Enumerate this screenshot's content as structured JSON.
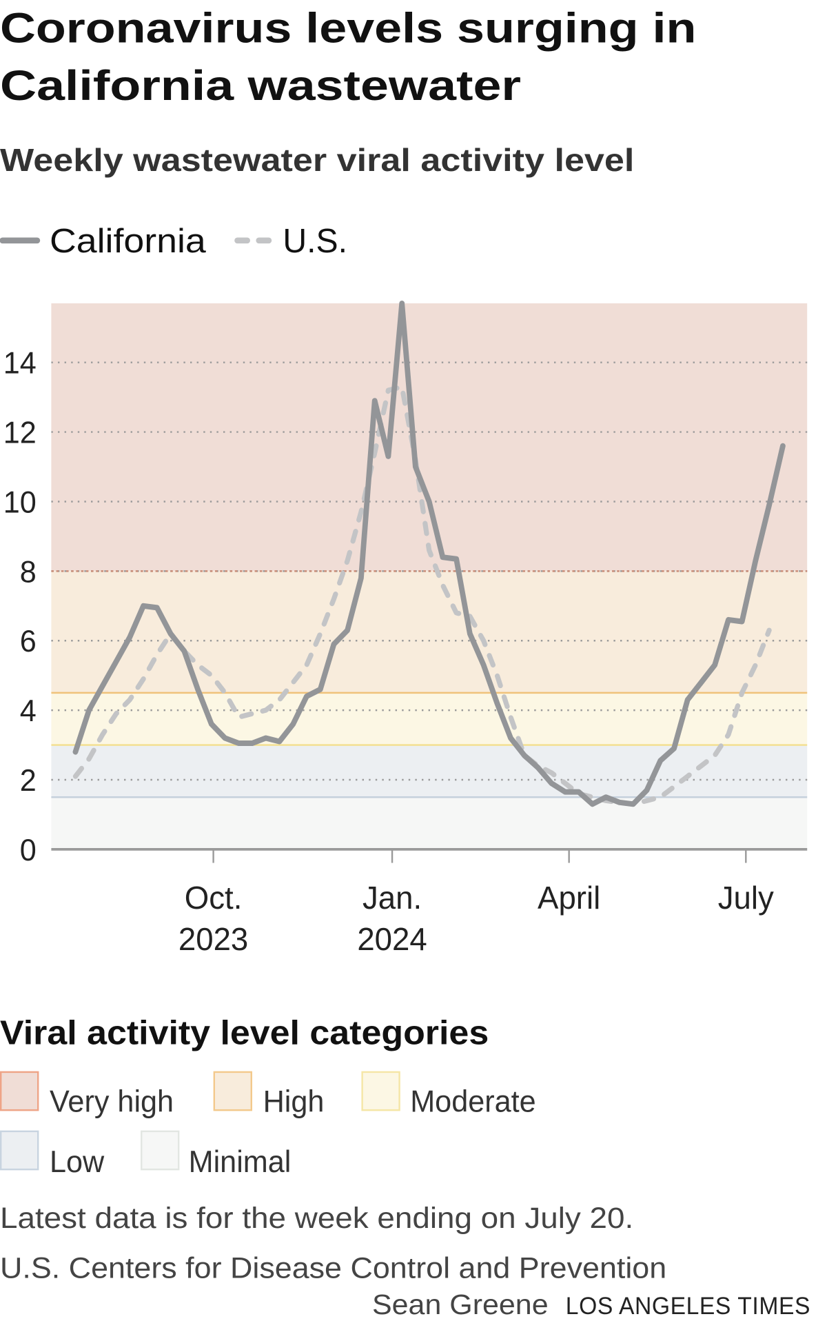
{
  "header": {
    "title_line1": "Coronavirus levels surging in",
    "title_line2": "California wastewater",
    "subtitle": "Weekly wastewater viral activity level"
  },
  "legend": {
    "california": "California",
    "us": "U.S."
  },
  "categories": {
    "heading": "Viral activity level categories",
    "items": [
      {
        "label": "Very high",
        "min": 8,
        "max": null,
        "fill": "#f0ddd6",
        "border": "#eea487",
        "line": "#c98d78"
      },
      {
        "label": "High",
        "min": 4.5,
        "max": 8,
        "fill": "#f8ecdc",
        "border": "#f3c98c",
        "line": "#f0c27a"
      },
      {
        "label": "Moderate",
        "min": 3,
        "max": 4.5,
        "fill": "#fcf7e4",
        "border": "#f5e6a6",
        "line": "#f3df8d"
      },
      {
        "label": "Low",
        "min": 1.5,
        "max": 3,
        "fill": "#eceff2",
        "border": "#c8d4e0",
        "line": "#c5d0dc"
      },
      {
        "label": "Minimal",
        "min": 0,
        "max": 1.5,
        "fill": "#f6f7f6",
        "border": "#e2e6e2",
        "line": null
      }
    ]
  },
  "footer": {
    "note": "Latest data is for the week ending on July 20.",
    "source": "U.S. Centers for Disease Control and Prevention",
    "byline": "Sean Greene",
    "brand": "LOS ANGELES TIMES"
  },
  "chart_data": {
    "type": "line",
    "title": "Coronavirus levels surging in California wastewater",
    "subtitle": "Weekly wastewater viral activity level",
    "ylim": [
      0,
      15.7
    ],
    "yticks": [
      "0",
      "2",
      "4",
      "6",
      "8",
      "10",
      "12",
      "14"
    ],
    "ytick_values": [
      0,
      2,
      4,
      6,
      8,
      10,
      12,
      14
    ],
    "xticks": [
      {
        "date": "2023-10-01",
        "line1": "Oct.",
        "line2": "2023"
      },
      {
        "date": "2024-01-01",
        "line1": "Jan.",
        "line2": "2024"
      },
      {
        "date": "2024-04-01",
        "line1": "April",
        "line2": ""
      },
      {
        "date": "2024-07-01",
        "line1": "July",
        "line2": ""
      }
    ],
    "grid": "horizontal dotted",
    "legend_position": "top-left",
    "x": [
      "2023-07-22",
      "2023-07-29",
      "2023-08-05",
      "2023-08-12",
      "2023-08-19",
      "2023-08-26",
      "2023-09-02",
      "2023-09-09",
      "2023-09-16",
      "2023-09-23",
      "2023-09-30",
      "2023-10-07",
      "2023-10-14",
      "2023-10-21",
      "2023-10-28",
      "2023-11-04",
      "2023-11-11",
      "2023-11-18",
      "2023-11-25",
      "2023-12-02",
      "2023-12-09",
      "2023-12-16",
      "2023-12-23",
      "2023-12-30",
      "2024-01-06",
      "2024-01-13",
      "2024-01-20",
      "2024-01-27",
      "2024-02-03",
      "2024-02-10",
      "2024-02-17",
      "2024-02-24",
      "2024-03-02",
      "2024-03-09",
      "2024-03-16",
      "2024-03-23",
      "2024-03-30",
      "2024-04-06",
      "2024-04-13",
      "2024-04-20",
      "2024-04-27",
      "2024-05-04",
      "2024-05-11",
      "2024-05-18",
      "2024-05-25",
      "2024-06-01",
      "2024-06-08",
      "2024-06-15",
      "2024-06-22",
      "2024-06-29",
      "2024-07-06",
      "2024-07-13",
      "2024-07-20"
    ],
    "series": [
      {
        "name": "California",
        "style": "solid",
        "color": "#939598",
        "values": [
          2.8,
          4.0,
          4.7,
          5.4,
          6.1,
          7.0,
          6.95,
          6.2,
          5.7,
          4.6,
          3.6,
          3.2,
          3.05,
          3.05,
          3.2,
          3.1,
          3.6,
          4.4,
          4.6,
          5.9,
          6.3,
          7.8,
          12.9,
          11.3,
          15.7,
          11.0,
          10.0,
          8.4,
          8.35,
          6.2,
          5.3,
          4.2,
          3.2,
          2.7,
          2.35,
          1.9,
          1.65,
          1.65,
          1.3,
          1.5,
          1.35,
          1.3,
          1.7,
          2.55,
          2.9,
          4.3,
          4.8,
          5.3,
          6.6,
          6.55,
          8.3,
          9.9,
          11.6
        ]
      },
      {
        "name": "U.S.",
        "style": "dashed",
        "color": "#c3c4c6",
        "values": [
          2.1,
          2.6,
          3.3,
          3.9,
          4.3,
          4.9,
          5.6,
          6.2,
          5.7,
          5.3,
          5.0,
          4.5,
          3.8,
          3.9,
          4.0,
          4.3,
          4.8,
          5.3,
          6.2,
          7.2,
          8.3,
          9.7,
          11.4,
          13.2,
          13.3,
          11.2,
          8.6,
          7.6,
          6.8,
          6.7,
          6.0,
          5.0,
          3.8,
          2.7,
          2.4,
          2.2,
          1.9,
          1.6,
          1.5,
          1.4,
          1.35,
          1.3,
          1.4,
          1.5,
          1.8,
          2.1,
          2.4,
          2.7,
          3.3,
          4.5,
          5.3,
          6.3,
          null
        ]
      }
    ]
  }
}
